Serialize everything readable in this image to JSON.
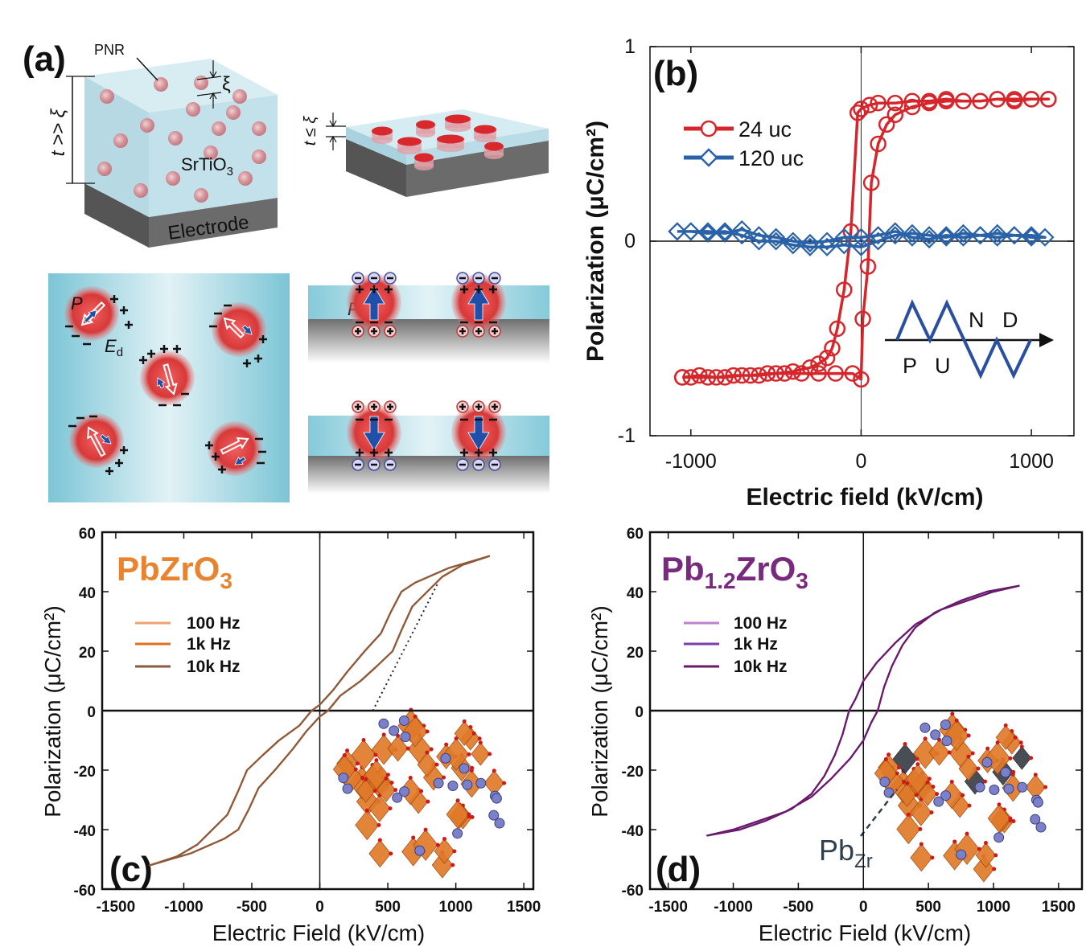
{
  "panel_labels": {
    "a": "(a)",
    "b": "(b)",
    "c": "(c)",
    "d": "(d)"
  },
  "diagram_a": {
    "pnr_label": "PNR",
    "xi": "ξ",
    "thick_label": "t >> ξ",
    "material_main": "SrTiO",
    "material_sub": "3",
    "electrode": "Electrode",
    "thin_label": "t ≤ ξ",
    "xi_thin": "ξ",
    "polarization_label": "P",
    "field_label_main": "E",
    "field_label_sub": "d",
    "polarization_label_strip": "P",
    "colors": {
      "film": "#BFE0EA",
      "electrode": "#6B6B6B",
      "pnr": "#D9383A",
      "arrow": "#1F4FA8",
      "negative_charge": "#5A5AA8",
      "positive_charge": "#C03A3A"
    }
  },
  "chart_data": [
    {
      "panel": "(b)",
      "type": "line",
      "xlabel": "Electric field (kV/cm)",
      "ylabel": "Polarization (μC/cm²)",
      "xlim": [
        -1240,
        1250
      ],
      "ylim": [
        -1,
        1
      ],
      "xticks": [
        -1000,
        0,
        1000
      ],
      "yticks": [
        -1,
        0,
        1
      ],
      "grid": false,
      "legend": "top-left",
      "inset_labels": [
        "P",
        "U",
        "N",
        "D"
      ],
      "series": [
        {
          "name": "24 uc",
          "color": "#D7262B",
          "marker": "circle",
          "x": [
            -1050,
            -950,
            -850,
            -750,
            -650,
            -550,
            -450,
            -350,
            -250,
            -150,
            -50,
            0,
            10,
            40,
            60,
            100,
            150,
            200,
            300,
            400,
            500,
            600,
            700,
            800,
            900,
            1000,
            1100,
            1100,
            1000,
            900,
            800,
            700,
            600,
            500,
            400,
            300,
            200,
            100,
            50,
            0,
            -20,
            -60,
            -100,
            -140,
            -170,
            -200,
            -250,
            -300,
            -400,
            -500,
            -600,
            -700,
            -800,
            -900,
            -1000,
            -1050
          ],
          "y": [
            -0.7,
            -0.69,
            -0.7,
            -0.69,
            -0.69,
            -0.68,
            -0.68,
            -0.68,
            -0.68,
            -0.68,
            -0.68,
            -0.71,
            -0.4,
            -0.13,
            0.3,
            0.5,
            0.6,
            0.65,
            0.69,
            0.71,
            0.72,
            0.72,
            0.72,
            0.73,
            0.73,
            0.73,
            0.73,
            0.73,
            0.73,
            0.72,
            0.73,
            0.72,
            0.72,
            0.73,
            0.72,
            0.72,
            0.71,
            0.71,
            0.7,
            0.68,
            0.66,
            0.05,
            -0.25,
            -0.45,
            -0.55,
            -0.6,
            -0.63,
            -0.65,
            -0.67,
            -0.68,
            -0.69,
            -0.69,
            -0.7,
            -0.7,
            -0.7,
            -0.7
          ]
        },
        {
          "name": "120 uc",
          "color": "#2A62A8",
          "marker": "diamond",
          "x": [
            -1080,
            -1000,
            -900,
            -800,
            -700,
            -600,
            -500,
            -400,
            -300,
            -200,
            -100,
            0,
            100,
            200,
            300,
            400,
            500,
            600,
            700,
            800,
            900,
            1000,
            1080,
            1000,
            900,
            800,
            700,
            600,
            500,
            400,
            300,
            200,
            100,
            0,
            -100,
            -200,
            -300,
            -400,
            -500,
            -600,
            -700,
            -800,
            -900,
            -1000,
            -1080
          ],
          "y": [
            0.05,
            0.05,
            0.04,
            0.05,
            0.03,
            0.0,
            0.0,
            -0.02,
            -0.03,
            -0.03,
            -0.02,
            -0.03,
            0.0,
            0.03,
            0.04,
            0.03,
            0.02,
            0.04,
            0.03,
            0.04,
            0.03,
            0.03,
            0.02,
            0.02,
            0.03,
            0.02,
            0.03,
            0.02,
            0.03,
            0.01,
            0.02,
            0.05,
            0.03,
            0.02,
            0.02,
            0.0,
            -0.01,
            0.0,
            0.02,
            0.03,
            0.06,
            0.04,
            0.05,
            0.05,
            0.05
          ]
        }
      ]
    },
    {
      "panel": "(c)",
      "type": "line",
      "title": {
        "main": "PbZrO",
        "sub": "3"
      },
      "title_color": "#E8842F",
      "xlabel": "Electric Field (kV/cm)",
      "ylabel": "Polarization (μC/cm²)",
      "xlim": [
        -1600,
        1570
      ],
      "ylim": [
        -60,
        60
      ],
      "xticks": [
        -1500,
        -1000,
        -500,
        0,
        500,
        1000,
        1500
      ],
      "yticks": [
        -60,
        -40,
        -20,
        0,
        20,
        40,
        60
      ],
      "grid": false,
      "legend": "upper-left",
      "guide_line": {
        "style": "dotted",
        "x": [
          390,
          870
        ],
        "y": [
          0,
          43
        ]
      },
      "series": [
        {
          "name": "100 Hz",
          "color": "#F0A070",
          "x": [
            1250,
            1100,
            950,
            800,
            700,
            600,
            520,
            450,
            330,
            200,
            100,
            0,
            -60,
            -150,
            -300,
            -420,
            -535,
            -600,
            -680,
            -790,
            -900,
            -1050,
            -1250,
            -1100,
            -950,
            -800,
            -700,
            -600,
            -520,
            -450,
            -330,
            -200,
            -100,
            0,
            60,
            150,
            300,
            420,
            535,
            600,
            680,
            790,
            900,
            1050,
            1250
          ],
          "y": [
            52,
            50,
            48,
            45,
            43,
            40,
            33,
            26,
            20,
            13,
            7,
            2,
            0,
            -5,
            -10,
            -15,
            -20,
            -27,
            -35,
            -40,
            -45,
            -49,
            -52,
            -50,
            -48,
            -45,
            -43,
            -40,
            -33,
            -26,
            -20,
            -13,
            -7,
            -2,
            0,
            5,
            10,
            15,
            20,
            27,
            35,
            40,
            45,
            49,
            52
          ]
        },
        {
          "name": "1k Hz",
          "color": "#E07020",
          "x": [
            1250,
            1100,
            950,
            800,
            700,
            600,
            520,
            450,
            330,
            200,
            100,
            0,
            -60,
            -150,
            -300,
            -420,
            -535,
            -600,
            -680,
            -790,
            -900,
            -1050,
            -1250,
            -1100,
            -950,
            -800,
            -700,
            -600,
            -520,
            -450,
            -330,
            -200,
            -100,
            0,
            60,
            150,
            300,
            420,
            535,
            600,
            680,
            790,
            900,
            1050,
            1250
          ],
          "y": [
            52,
            50,
            48,
            45,
            43,
            40,
            33,
            26,
            20,
            13,
            7,
            2,
            0,
            -5,
            -10,
            -15,
            -20,
            -27,
            -35,
            -40,
            -45,
            -49,
            -52,
            -50,
            -48,
            -45,
            -43,
            -40,
            -33,
            -26,
            -20,
            -13,
            -7,
            -2,
            0,
            5,
            10,
            15,
            20,
            27,
            35,
            40,
            45,
            49,
            52
          ]
        },
        {
          "name": "10k Hz",
          "color": "#8B5A3C",
          "x": [
            1250,
            1100,
            950,
            800,
            700,
            600,
            520,
            450,
            330,
            200,
            100,
            0,
            -60,
            -150,
            -300,
            -420,
            -535,
            -600,
            -680,
            -790,
            -900,
            -1050,
            -1250,
            -1100,
            -950,
            -800,
            -700,
            -600,
            -520,
            -450,
            -330,
            -200,
            -100,
            0,
            60,
            150,
            300,
            420,
            535,
            600,
            680,
            790,
            900,
            1050,
            1250
          ],
          "y": [
            52,
            50,
            48,
            45,
            43,
            40,
            33,
            26,
            20,
            13,
            7,
            2,
            0,
            -5,
            -10,
            -15,
            -20,
            -27,
            -35,
            -40,
            -45,
            -49,
            -52,
            -50,
            -48,
            -45,
            -43,
            -40,
            -33,
            -26,
            -20,
            -13,
            -7,
            -2,
            0,
            5,
            10,
            15,
            20,
            27,
            35,
            40,
            45,
            49,
            52
          ]
        }
      ]
    },
    {
      "panel": "(d)",
      "type": "line",
      "title": {
        "main": "Pb",
        "sub": "1.2",
        "main2": "ZrO",
        "sub2": "3"
      },
      "title_color": "#7A2A7E",
      "xlabel": "Electric Field (kV/cm)",
      "ylabel": "Polarization (μC/cm²)",
      "xlim": [
        -1640,
        1680
      ],
      "ylim": [
        -60,
        60
      ],
      "xticks": [
        -1500,
        -1000,
        -500,
        0,
        500,
        1000,
        1500
      ],
      "yticks": [
        -60,
        -40,
        -20,
        0,
        20,
        40,
        60
      ],
      "grid": false,
      "legend": "upper-left",
      "annotation": {
        "main": "Pb",
        "sub": "Zr",
        "color": "#2F3F50"
      },
      "series": [
        {
          "name": "100 Hz",
          "color": "#C080D0",
          "x": [
            1200,
            1000,
            800,
            600,
            400,
            250,
            100,
            0,
            -60,
            -110,
            -160,
            -220,
            -300,
            -400,
            -550,
            -750,
            -950,
            -1200,
            -1000,
            -800,
            -600,
            -400,
            -250,
            -100,
            0,
            60,
            110,
            160,
            220,
            300,
            400,
            550,
            750,
            950,
            1200
          ],
          "y": [
            42,
            40,
            37,
            34,
            29,
            23,
            16,
            10,
            4,
            0,
            -8,
            -15,
            -22,
            -28,
            -33,
            -37,
            -40,
            -42,
            -40,
            -37,
            -34,
            -29,
            -23,
            -16,
            -10,
            -4,
            0,
            8,
            15,
            22,
            28,
            33,
            37,
            40,
            42
          ]
        },
        {
          "name": "1k Hz",
          "color": "#7B3FB0",
          "x": [
            1200,
            1000,
            800,
            600,
            400,
            250,
            100,
            0,
            -60,
            -110,
            -160,
            -220,
            -300,
            -400,
            -550,
            -750,
            -950,
            -1200,
            -1000,
            -800,
            -600,
            -400,
            -250,
            -100,
            0,
            60,
            110,
            160,
            220,
            300,
            400,
            550,
            750,
            950,
            1200
          ],
          "y": [
            42,
            40,
            37,
            34,
            29,
            23,
            16,
            10,
            4,
            0,
            -8,
            -15,
            -22,
            -28,
            -33,
            -37,
            -40,
            -42,
            -40,
            -37,
            -34,
            -29,
            -23,
            -16,
            -10,
            -4,
            0,
            8,
            15,
            22,
            28,
            33,
            37,
            40,
            42
          ]
        },
        {
          "name": "10k Hz",
          "color": "#6A1A6A",
          "x": [
            1200,
            1000,
            800,
            600,
            400,
            250,
            100,
            0,
            -60,
            -110,
            -160,
            -220,
            -300,
            -400,
            -550,
            -750,
            -950,
            -1200,
            -1000,
            -800,
            -600,
            -400,
            -250,
            -100,
            0,
            60,
            110,
            160,
            220,
            300,
            400,
            550,
            750,
            950,
            1200
          ],
          "y": [
            42,
            40,
            37,
            34,
            29,
            23,
            16,
            10,
            4,
            0,
            -8,
            -15,
            -22,
            -28,
            -33,
            -37,
            -40,
            -42,
            -40,
            -37,
            -34,
            -29,
            -23,
            -16,
            -10,
            -4,
            0,
            8,
            15,
            22,
            28,
            33,
            37,
            40,
            42
          ]
        }
      ]
    }
  ]
}
